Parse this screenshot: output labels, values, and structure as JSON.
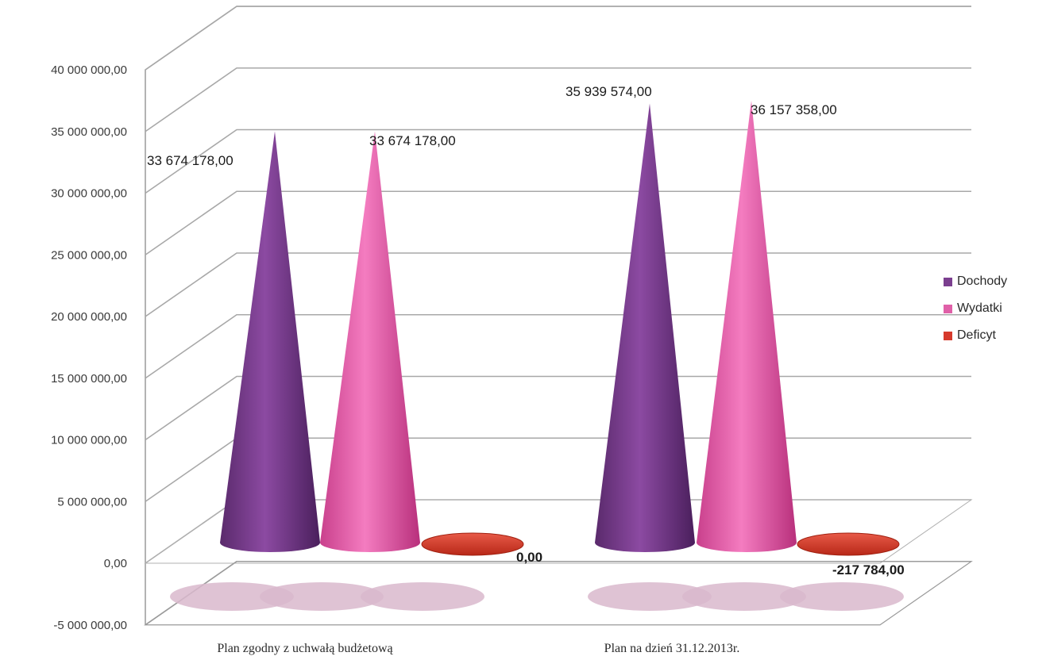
{
  "chart_data": {
    "type": "bar",
    "subtype": "3d-cone",
    "categories": [
      "Plan zgodny z uchwałą budżetową",
      "Plan na dzień 31.12.2013r."
    ],
    "series": [
      {
        "name": "Dochody",
        "color": "#7b3f8f",
        "values": [
          33674178.0,
          35939574.0
        ]
      },
      {
        "name": "Wydatki",
        "color": "#e060a8",
        "values": [
          33674178.0,
          36157358.0
        ]
      },
      {
        "name": "Deficyt",
        "color": "#d63a2c",
        "values": [
          0.0,
          -217784.0
        ]
      }
    ],
    "data_labels": [
      {
        "series": 0,
        "category": 0,
        "text": "33 674 178,00"
      },
      {
        "series": 1,
        "category": 0,
        "text": "33 674 178,00"
      },
      {
        "series": 2,
        "category": 0,
        "text": "0,00"
      },
      {
        "series": 0,
        "category": 1,
        "text": "35 939 574,00"
      },
      {
        "series": 1,
        "category": 1,
        "text": "36 157 358,00"
      },
      {
        "series": 2,
        "category": 1,
        "text": "-217 784,00"
      }
    ],
    "y_ticks": [
      {
        "value": 40000000,
        "label": "40 000 000,00"
      },
      {
        "value": 35000000,
        "label": "35 000 000,00"
      },
      {
        "value": 30000000,
        "label": "30 000 000,00"
      },
      {
        "value": 25000000,
        "label": "25 000 000,00"
      },
      {
        "value": 20000000,
        "label": "20 000 000,00"
      },
      {
        "value": 15000000,
        "label": "15 000 000,00"
      },
      {
        "value": 10000000,
        "label": "10 000 000,00"
      },
      {
        "value": 5000000,
        "label": "5 000 000,00"
      },
      {
        "value": 0,
        "label": "0,00"
      },
      {
        "value": -5000000,
        "label": "-5 000 000,00"
      }
    ],
    "ylim": [
      -5000000,
      40000000
    ],
    "grid": true,
    "legend_position": "right",
    "title": "",
    "xlabel": "",
    "ylabel": ""
  }
}
